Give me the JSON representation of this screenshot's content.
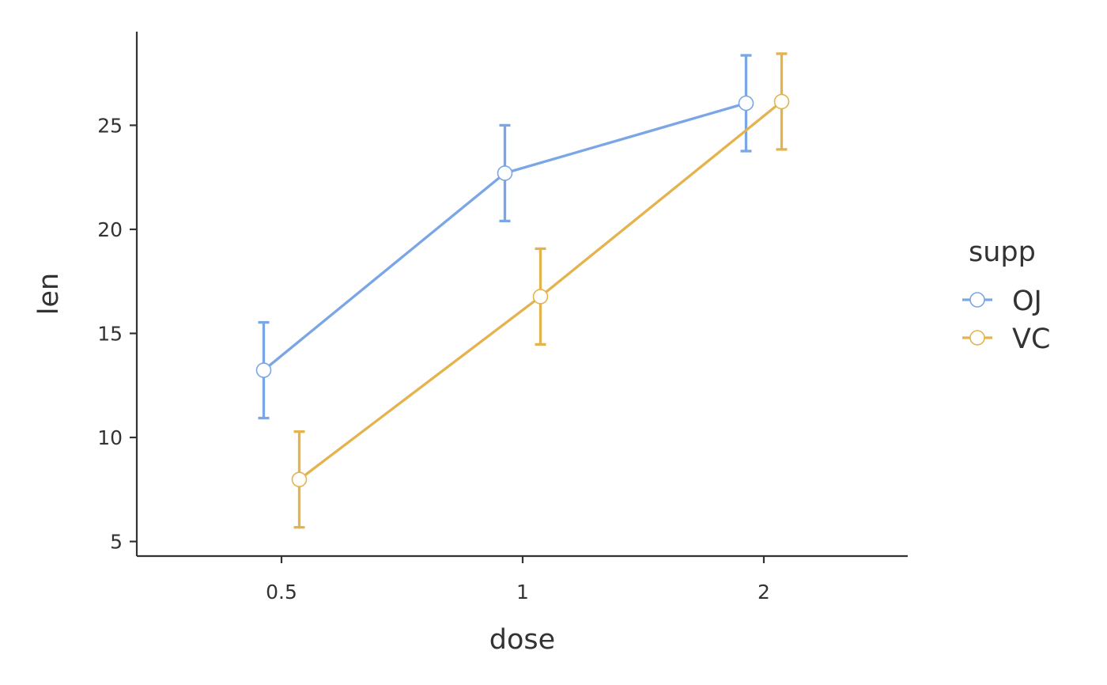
{
  "chart_data": {
    "type": "line",
    "title": "",
    "xlabel": "dose",
    "ylabel": "len",
    "categories": [
      "0.5",
      "1",
      "2"
    ],
    "ylim": [
      4.3,
      29.5
    ],
    "yticks": [
      5,
      10,
      15,
      20,
      25
    ],
    "grid": false,
    "legend": {
      "title": "supp",
      "placement": "right"
    },
    "series": [
      {
        "name": "OJ",
        "color": "#7BA6E6",
        "values": [
          13.23,
          22.7,
          26.06
        ],
        "err_low": [
          10.93,
          20.4,
          23.76
        ],
        "err_high": [
          15.53,
          25.0,
          28.36
        ]
      },
      {
        "name": "VC",
        "color": "#E5B34E",
        "values": [
          7.98,
          16.77,
          26.14
        ],
        "err_low": [
          5.68,
          14.47,
          23.84
        ],
        "err_high": [
          10.28,
          19.07,
          28.44
        ]
      }
    ]
  }
}
